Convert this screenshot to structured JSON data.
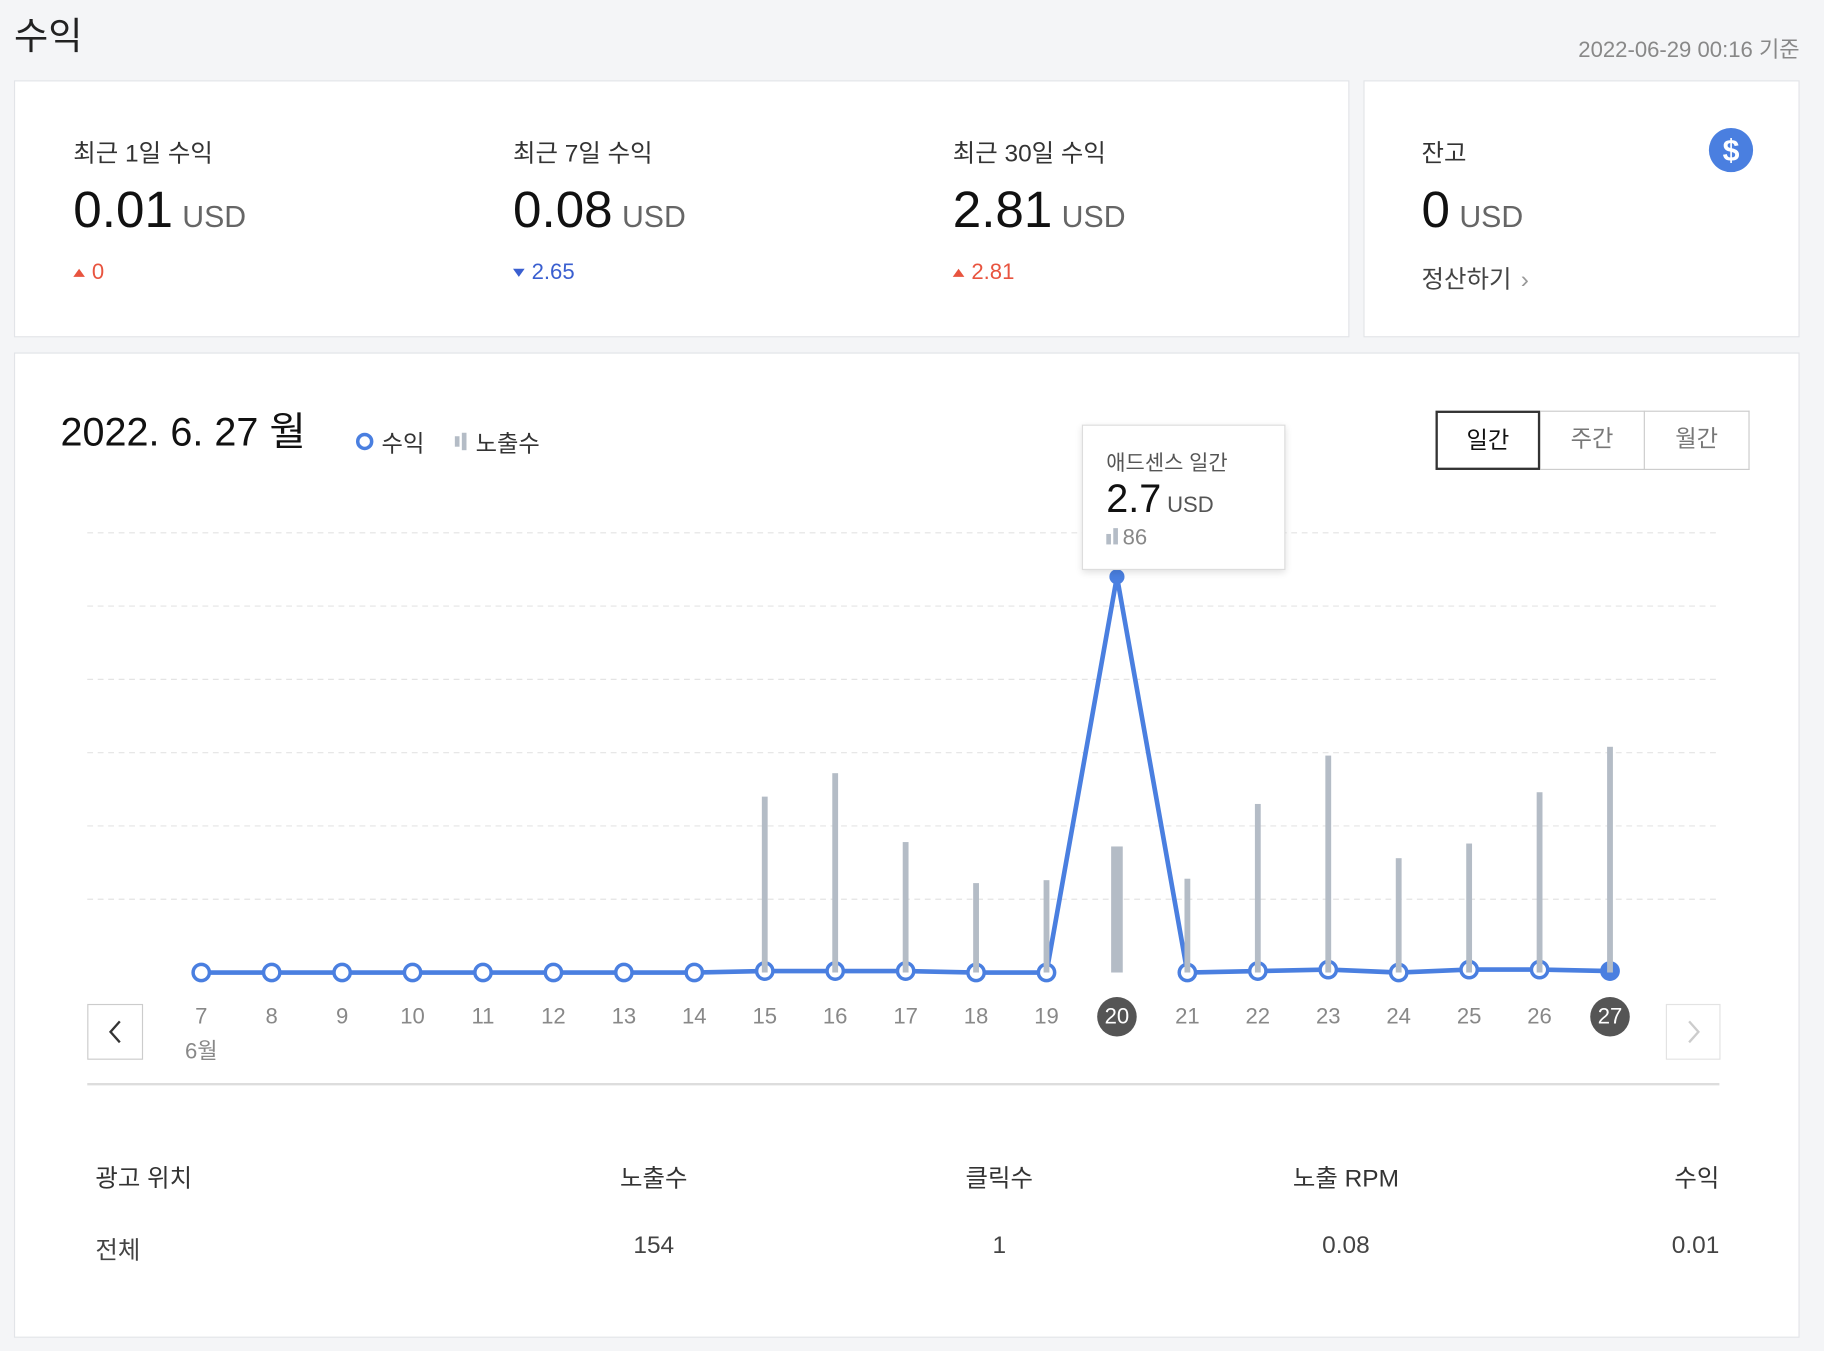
{
  "header": {
    "title": "수익",
    "timestamp": "2022-06-29 00:16 기준"
  },
  "summary": [
    {
      "label": "최근 1일 수익",
      "value": "0.01",
      "unit": "USD",
      "change": "0",
      "direction": "up"
    },
    {
      "label": "최근 7일 수익",
      "value": "0.08",
      "unit": "USD",
      "change": "2.65",
      "direction": "down"
    },
    {
      "label": "최근 30일 수익",
      "value": "2.81",
      "unit": "USD",
      "change": "2.81",
      "direction": "up"
    }
  ],
  "balance": {
    "label": "잔고",
    "value": "0",
    "unit": "USD",
    "action": "정산하기"
  },
  "chart_data": {
    "type": "line",
    "title": "2022. 6. 27 월",
    "tabs": [
      "일간",
      "주간",
      "월간"
    ],
    "categories": [
      "7",
      "8",
      "9",
      "10",
      "11",
      "12",
      "13",
      "14",
      "15",
      "16",
      "17",
      "18",
      "19",
      "20",
      "21",
      "22",
      "23",
      "24",
      "25",
      "26",
      "27"
    ],
    "month_label": "6월",
    "ylim": [
      0,
      3
    ],
    "ygrid": [
      0.5,
      1,
      1.5,
      2,
      2.5,
      3
    ],
    "y2lim": [
      0,
      300
    ],
    "grid": true,
    "series": [
      {
        "name": "수익",
        "color": "#4a7fe0",
        "values": [
          0,
          0,
          0,
          0,
          0,
          0,
          0,
          0,
          0.01,
          0.01,
          0.01,
          0,
          0,
          2.7,
          0,
          0.01,
          0.02,
          0,
          0.02,
          0.02,
          0.01
        ]
      },
      {
        "name": "노출수",
        "type": "bar",
        "axis": "y2",
        "color": "#b4bcc6",
        "values": [
          0,
          0,
          0,
          0,
          0,
          0,
          0,
          0,
          120,
          136,
          89,
          61,
          63,
          86,
          64,
          115,
          148,
          78,
          88,
          123,
          154
        ]
      }
    ],
    "tooltip": {
      "title": "애드센스 일간",
      "value": "2.7",
      "unit": "USD",
      "impressions": "86"
    }
  },
  "table": {
    "headers": [
      "광고 위치",
      "노출수",
      "클릭수",
      "노출 RPM",
      "수익"
    ],
    "rows": [
      [
        "전체",
        "154",
        "1",
        "0.08",
        "0.01"
      ]
    ]
  }
}
